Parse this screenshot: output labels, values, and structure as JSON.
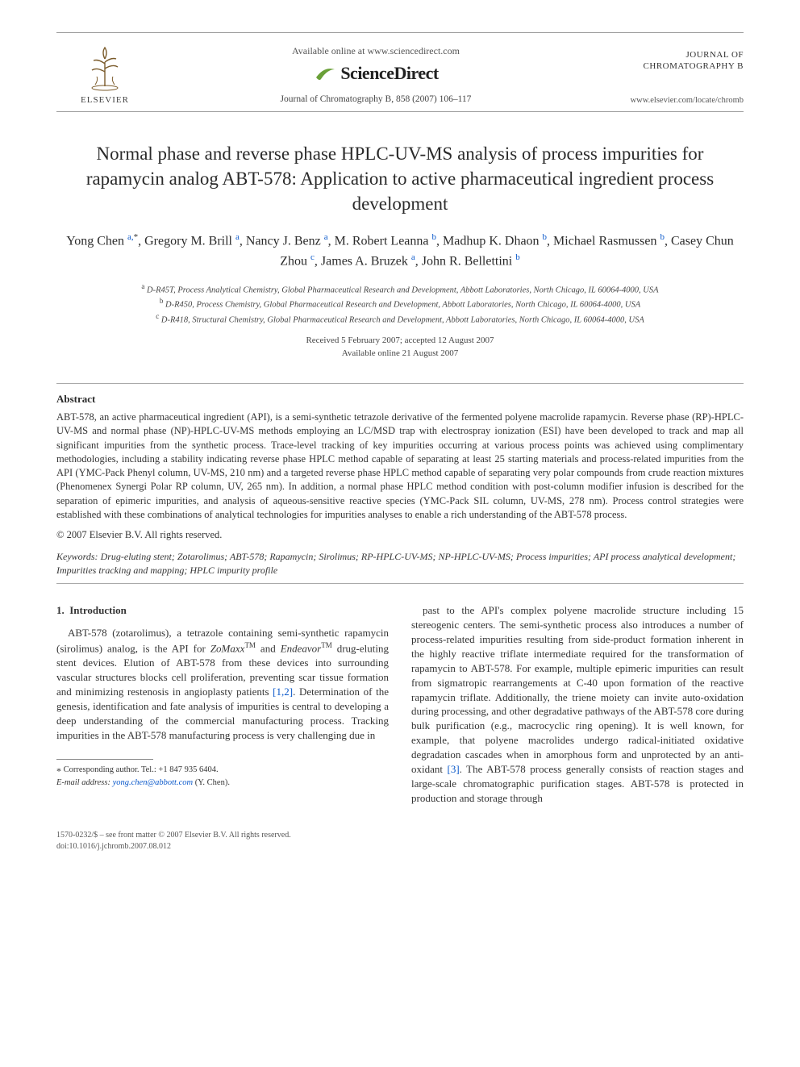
{
  "colors": {
    "text": "#353535",
    "link": "#0a58ca",
    "rule": "#999999",
    "background": "#ffffff",
    "elsevier_orange": "#e77c32",
    "sd_swoosh": "#6aa038"
  },
  "typography": {
    "body_family": "Times New Roman",
    "title_fontsize_pt": 17,
    "authors_fontsize_pt": 12,
    "abstract_fontsize_pt": 9.5,
    "body_fontsize_pt": 10
  },
  "header": {
    "available_online": "Available online at www.sciencedirect.com",
    "sciencedirect": "ScienceDirect",
    "journal_ref": "Journal of Chromatography B, 858 (2007) 106–117",
    "publisher": "ELSEVIER",
    "journal_title_line1": "JOURNAL OF",
    "journal_title_line2": "CHROMATOGRAPHY B",
    "journal_url": "www.elsevier.com/locate/chromb"
  },
  "article": {
    "title": "Normal phase and reverse phase HPLC-UV-MS analysis of process impurities for rapamycin analog ABT-578: Application to active pharmaceutical ingredient process development",
    "authors_html": "Yong Chen <sup>a,</sup><sup class='sup-star'>*</sup>, Gregory M. Brill <sup>a</sup>, Nancy J. Benz <sup>a</sup>, M. Robert Leanna <sup>b</sup>, Madhup K. Dhaon <sup>b</sup>, Michael Rasmussen <sup>b</sup>, Casey Chun Zhou <sup>c</sup>, James A. Bruzek <sup>a</sup>, John R. Bellettini <sup>b</sup>",
    "affiliations": [
      {
        "key": "a",
        "text": "D-R45T, Process Analytical Chemistry, Global Pharmaceutical Research and Development, Abbott Laboratories, North Chicago, IL 60064-4000, USA"
      },
      {
        "key": "b",
        "text": "D-R450, Process Chemistry, Global Pharmaceutical Research and Development, Abbott Laboratories, North Chicago, IL 60064-4000, USA"
      },
      {
        "key": "c",
        "text": "D-R418, Structural Chemistry, Global Pharmaceutical Research and Development, Abbott Laboratories, North Chicago, IL 60064-4000, USA"
      }
    ],
    "dates_line1": "Received 5 February 2007; accepted 12 August 2007",
    "dates_line2": "Available online 21 August 2007"
  },
  "abstract": {
    "heading": "Abstract",
    "body": "ABT-578, an active pharmaceutical ingredient (API), is a semi-synthetic tetrazole derivative of the fermented polyene macrolide rapamycin. Reverse phase (RP)-HPLC-UV-MS and normal phase (NP)-HPLC-UV-MS methods employing an LC/MSD trap with electrospray ionization (ESI) have been developed to track and map all significant impurities from the synthetic process. Trace-level tracking of key impurities occurring at various process points was achieved using complimentary methodologies, including a stability indicating reverse phase HPLC method capable of separating at least 25 starting materials and process-related impurities from the API (YMC-Pack Phenyl column, UV-MS, 210 nm) and a targeted reverse phase HPLC method capable of separating very polar compounds from crude reaction mixtures (Phenomenex Synergi Polar RP column, UV, 265 nm). In addition, a normal phase HPLC method condition with post-column modifier infusion is described for the separation of epimeric impurities, and analysis of aqueous-sensitive reactive species (YMC-Pack SIL column, UV-MS, 278 nm). Process control strategies were established with these combinations of analytical technologies for impurities analyses to enable a rich understanding of the ABT-578 process.",
    "copyright": "© 2007 Elsevier B.V. All rights reserved."
  },
  "keywords": {
    "label": "Keywords:",
    "text": "Drug-eluting stent; Zotarolimus; ABT-578; Rapamycin; Sirolimus; RP-HPLC-UV-MS; NP-HPLC-UV-MS; Process impurities; API process analytical development; Impurities tracking and mapping; HPLC impurity profile"
  },
  "body": {
    "section_no": "1.",
    "section_title": "Introduction",
    "col1_html": "ABT-578 (zotarolimus), a tetrazole containing semi-synthetic rapamycin (sirolimus) analog, is the API for <span class='italic-brand'>ZoMaxx</span><span class='tm'>TM</span> and <span class='italic-brand'>Endeavor</span><span class='tm'>TM</span> drug-eluting stent devices. Elution of ABT-578 from these devices into surrounding vascular structures blocks cell proliferation, preventing scar tissue formation and minimizing restenosis in angioplasty patients <span class='ref-link'>[1,2]</span>. Determination of the genesis, identification and fate analysis of impurities is central to developing a deep understanding of the commercial manufacturing process. Tracking impurities in the ABT-578 manufacturing process is very challenging due in",
    "col2_html": "past to the API's complex polyene macrolide structure including 15 stereogenic centers. The semi-synthetic process also introduces a number of process-related impurities resulting from side-product formation inherent in the highly reactive triflate intermediate required for the transformation of rapamycin to ABT-578. For example, multiple epimeric impurities can result from sigmatropic rearrangements at C-40 upon formation of the reactive rapamycin triflate. Additionally, the triene moiety can invite auto-oxidation during processing, and other degradative pathways of the ABT-578 core during bulk purification (e.g., macrocyclic ring opening). It is well known, for example, that polyene macrolides undergo radical-initiated oxidative degradation cascades when in amorphous form and unprotected by an anti-oxidant <span class='ref-link'>[3]</span>. The ABT-578 process generally consists of reaction stages and large-scale chromatographic purification stages. ABT-578 is protected in production and storage through"
  },
  "footnote": {
    "corresponding": "Corresponding author. Tel.: +1 847 935 6404.",
    "email_label": "E-mail address:",
    "email": "yong.chen@abbott.com",
    "email_attrib": "(Y. Chen)."
  },
  "bottom": {
    "issn_line": "1570-0232/$ – see front matter © 2007 Elsevier B.V. All rights reserved.",
    "doi_line": "doi:10.1016/j.jchromb.2007.08.012"
  }
}
